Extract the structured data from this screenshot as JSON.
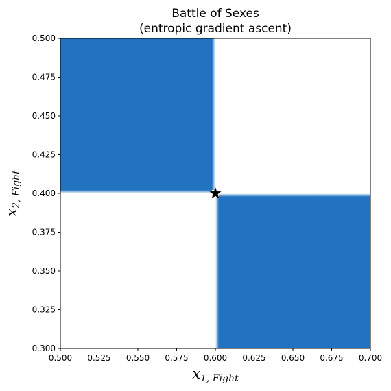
{
  "chart_data": {
    "type": "heatmap",
    "title": "Battle of Sexes",
    "subtitle": "(entropic gradient ascent)",
    "xlabel": {
      "base": "x",
      "sub": "1, Fight"
    },
    "ylabel": {
      "base": "x",
      "sub": "2, Fight"
    },
    "xlim": [
      0.5,
      0.7
    ],
    "ylim": [
      0.3,
      0.5
    ],
    "x_ticks": [
      0.5,
      0.525,
      0.55,
      0.575,
      0.6,
      0.625,
      0.65,
      0.675,
      0.7
    ],
    "y_ticks": [
      0.3,
      0.325,
      0.35,
      0.375,
      0.4,
      0.425,
      0.45,
      0.475,
      0.5
    ],
    "x_tick_labels": [
      "0.500",
      "0.525",
      "0.550",
      "0.575",
      "0.600",
      "0.625",
      "0.650",
      "0.675",
      "0.700"
    ],
    "y_tick_labels": [
      "0.300",
      "0.325",
      "0.350",
      "0.375",
      "0.400",
      "0.425",
      "0.450",
      "0.475",
      "0.500"
    ],
    "grid": false,
    "fill_color": "#2173c1",
    "regions": [
      {
        "name": "upper-left",
        "x": [
          0.5,
          0.6
        ],
        "y": [
          0.4,
          0.5
        ]
      },
      {
        "name": "lower-right",
        "x": [
          0.6,
          0.7
        ],
        "y": [
          0.3,
          0.4
        ]
      }
    ],
    "equilibrium": {
      "x": 0.6,
      "y": 0.4,
      "marker": "star",
      "color": "#000000"
    }
  }
}
